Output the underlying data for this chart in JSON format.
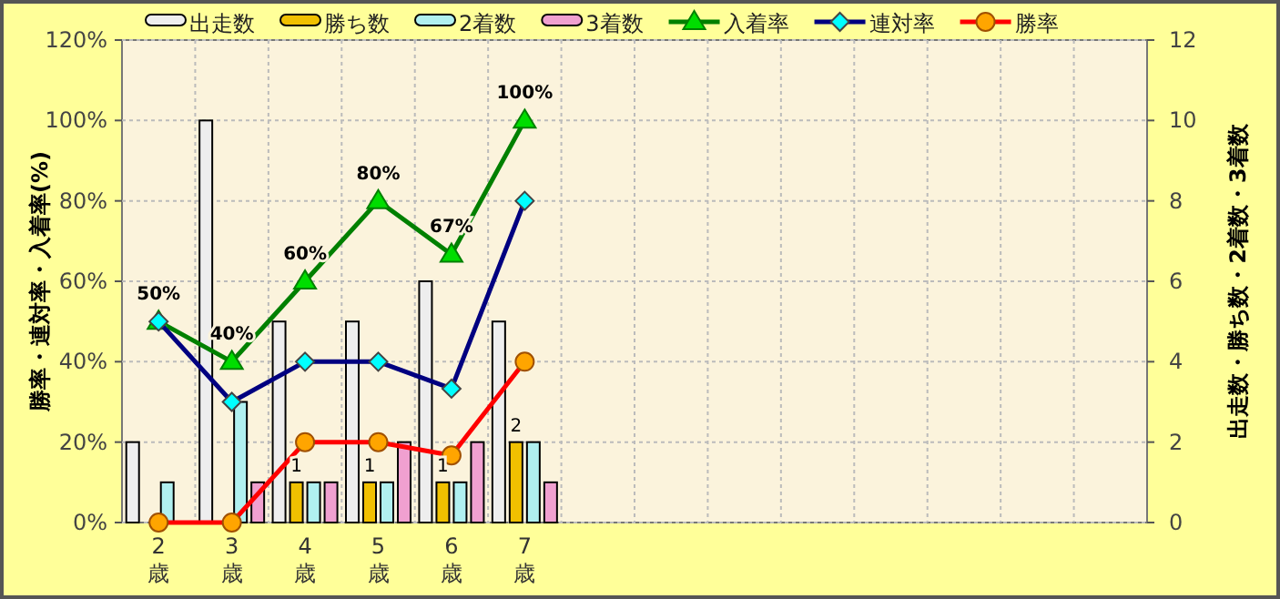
{
  "chart_data": {
    "type": "bar",
    "ylabel": "勝率・連対率・入着率(%)",
    "y2label": "出走数・勝ち数・2着数・3着数",
    "categories": [
      "2歳",
      "3歳",
      "4歳",
      "5歳",
      "6歳",
      "7歳",
      null,
      null,
      null,
      null,
      null,
      null,
      null,
      null
    ],
    "ylim": [
      0,
      120
    ],
    "yticks": [
      {
        "value": 0,
        "label": "0%"
      },
      {
        "value": 20,
        "label": "20%"
      },
      {
        "value": 40,
        "label": "40%"
      },
      {
        "value": 60,
        "label": "60%"
      },
      {
        "value": 80,
        "label": "80%"
      },
      {
        "value": 100,
        "label": "100%"
      },
      {
        "value": 120,
        "label": "120%"
      }
    ],
    "y2lim": [
      0,
      12
    ],
    "y2ticks": [
      0,
      2,
      4,
      6,
      8,
      10,
      12
    ],
    "grid": true,
    "legend": "top",
    "series": [
      {
        "name": "出走数",
        "axis": "y2",
        "color": "#eeeeee",
        "values": [
          2,
          10,
          5,
          5,
          6,
          5,
          null,
          null,
          null,
          null,
          null,
          null,
          null,
          null
        ]
      },
      {
        "name": "勝ち数",
        "axis": "y2",
        "color": "#f0c000",
        "values": [
          0,
          0,
          1,
          1,
          1,
          2,
          null,
          null,
          null,
          null,
          null,
          null,
          null,
          null
        ],
        "value_labels": [
          null,
          null,
          "1",
          "1",
          "1",
          "2",
          null,
          null,
          null,
          null,
          null,
          null,
          null,
          null
        ]
      },
      {
        "name": "2着数",
        "axis": "y2",
        "color": "#b0f0f0",
        "values": [
          1,
          3,
          1,
          1,
          1,
          2,
          null,
          null,
          null,
          null,
          null,
          null,
          null,
          null
        ]
      },
      {
        "name": "3着数",
        "axis": "y2",
        "color": "#f0a0d0",
        "values": [
          0,
          1,
          1,
          2,
          2,
          1,
          null,
          null,
          null,
          null,
          null,
          null,
          null,
          null
        ]
      },
      {
        "name": "入着率",
        "type": "line",
        "axis": "y",
        "color": "#008000",
        "marker": "triangle",
        "values": [
          50,
          40,
          60,
          80,
          66.7,
          100,
          null,
          null,
          null,
          null,
          null,
          null,
          null,
          null
        ],
        "value_labels": [
          "50%",
          "40%",
          "60%",
          "80%",
          "67%",
          "100%",
          null,
          null,
          null,
          null,
          null,
          null,
          null,
          null
        ]
      },
      {
        "name": "連対率",
        "type": "line",
        "axis": "y",
        "color": "#000080",
        "marker": "diamond",
        "values": [
          50,
          30,
          40,
          40,
          33.3,
          80,
          null,
          null,
          null,
          null,
          null,
          null,
          null,
          null
        ]
      },
      {
        "name": "勝率",
        "type": "line",
        "axis": "y",
        "color": "#ff0000",
        "marker": "circle",
        "values": [
          0,
          0,
          20,
          20,
          16.7,
          40,
          null,
          null,
          null,
          null,
          null,
          null,
          null,
          null
        ]
      }
    ]
  }
}
